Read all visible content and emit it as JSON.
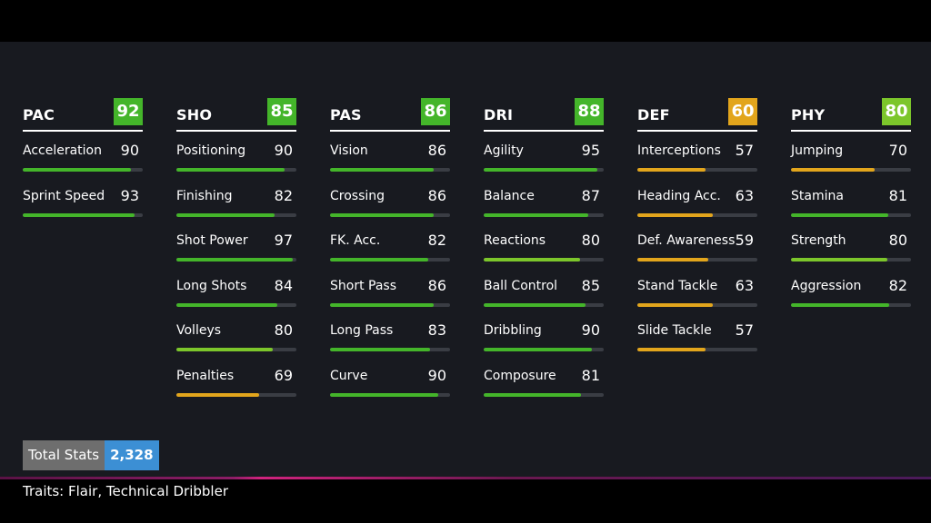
{
  "colors": {
    "background": "#181a20",
    "green": "#44b52a",
    "light_green": "#7cc62b",
    "amber": "#e2a51c",
    "bar_track": "#3a3d44",
    "total_blue": "#3c8fd4"
  },
  "columns": [
    {
      "name": "PAC",
      "rating": "92",
      "badge_color": "#44b52a",
      "stats": [
        {
          "name": "Acceleration",
          "value": "90"
        },
        {
          "name": "Sprint Speed",
          "value": "93"
        }
      ]
    },
    {
      "name": "SHO",
      "rating": "85",
      "badge_color": "#44b52a",
      "stats": [
        {
          "name": "Positioning",
          "value": "90"
        },
        {
          "name": "Finishing",
          "value": "82"
        },
        {
          "name": "Shot Power",
          "value": "97"
        },
        {
          "name": "Long Shots",
          "value": "84"
        },
        {
          "name": "Volleys",
          "value": "80"
        },
        {
          "name": "Penalties",
          "value": "69"
        }
      ]
    },
    {
      "name": "PAS",
      "rating": "86",
      "badge_color": "#44b52a",
      "stats": [
        {
          "name": "Vision",
          "value": "86"
        },
        {
          "name": "Crossing",
          "value": "86"
        },
        {
          "name": "FK. Acc.",
          "value": "82"
        },
        {
          "name": "Short Pass",
          "value": "86"
        },
        {
          "name": "Long Pass",
          "value": "83"
        },
        {
          "name": "Curve",
          "value": "90"
        }
      ]
    },
    {
      "name": "DRI",
      "rating": "88",
      "badge_color": "#44b52a",
      "stats": [
        {
          "name": "Agility",
          "value": "95"
        },
        {
          "name": "Balance",
          "value": "87"
        },
        {
          "name": "Reactions",
          "value": "80"
        },
        {
          "name": "Ball Control",
          "value": "85"
        },
        {
          "name": "Dribbling",
          "value": "90"
        },
        {
          "name": "Composure",
          "value": "81"
        }
      ]
    },
    {
      "name": "DEF",
      "rating": "60",
      "badge_color": "#e2a51c",
      "stats": [
        {
          "name": "Interceptions",
          "value": "57"
        },
        {
          "name": "Heading Acc.",
          "value": "63"
        },
        {
          "name": "Def. Awareness",
          "value": "59"
        },
        {
          "name": "Stand Tackle",
          "value": "63"
        },
        {
          "name": "Slide Tackle",
          "value": "57"
        }
      ]
    },
    {
      "name": "PHY",
      "rating": "80",
      "badge_color": "#7cc62b",
      "stats": [
        {
          "name": "Jumping",
          "value": "70"
        },
        {
          "name": "Stamina",
          "value": "81"
        },
        {
          "name": "Strength",
          "value": "80"
        },
        {
          "name": "Aggression",
          "value": "82"
        }
      ]
    }
  ],
  "total": {
    "label": "Total Stats",
    "value": "2,328"
  },
  "traits": "Traits: Flair, Technical Dribbler"
}
